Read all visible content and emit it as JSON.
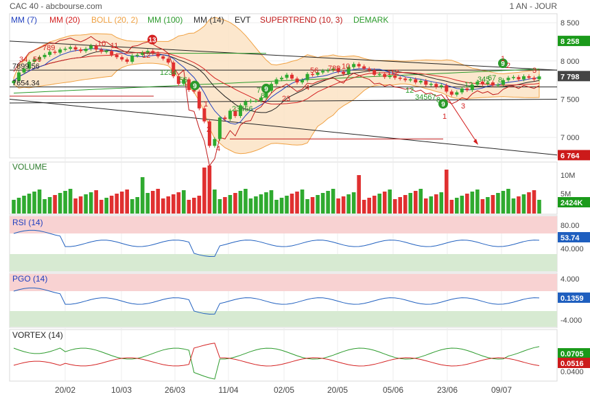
{
  "header": {
    "title": "CAC 40 - abcbourse.com",
    "period": "1 AN - JOUR"
  },
  "legend": [
    {
      "label": "MM (7)",
      "color": "#1f3fbf"
    },
    {
      "label": "MM (20)",
      "color": "#d42020"
    },
    {
      "label": "BOLL (20, 2)",
      "color": "#f0a040"
    },
    {
      "label": "MM (100)",
      "color": "#2a9a2a"
    },
    {
      "label": "MM (14)",
      "color": "#333333"
    },
    {
      "label": "EVT",
      "color": "#222222"
    },
    {
      "label": "SUPERTREND (10, 3)",
      "color": "#c01818"
    },
    {
      "label": "DEMARK",
      "color": "#2a9a2a"
    }
  ],
  "x_axis": {
    "labels": [
      "20/02",
      "10/03",
      "26/03",
      "11/04",
      "02/05",
      "20/05",
      "05/06",
      "23/06",
      "09/07"
    ]
  },
  "price_panel": {
    "y_ticks": [
      "8 500",
      "8 000",
      "7 500",
      "7 000"
    ],
    "badges": [
      {
        "text": "8 258",
        "color": "#1a9a1a"
      },
      {
        "text": "7 798",
        "color": "#444444"
      },
      {
        "text": "6 764",
        "color": "#cc1a1a"
      }
    ],
    "level_labels": [
      "7899.56",
      "7654.34"
    ],
    "demark_markers": [
      "13",
      "9",
      "9",
      "9",
      "9"
    ],
    "demark_counts": [
      "34",
      "56",
      "789",
      "10",
      "11",
      "12",
      "1234",
      "56",
      "1",
      "2",
      "4",
      "23456",
      "7",
      "8",
      "23",
      "4",
      "56",
      "789",
      "10",
      "112",
      "12",
      "34567",
      "8",
      "12",
      "345",
      "67",
      "8",
      "1",
      "2",
      "3",
      "1",
      "3"
    ]
  },
  "volume_panel": {
    "title": "VOLUME",
    "y_ticks": [
      "10M",
      "5M"
    ],
    "badge": {
      "text": "2424K",
      "color": "#1a9a1a"
    }
  },
  "rsi_panel": {
    "title": "RSI (14)",
    "y_ticks": [
      "80.00",
      "40.000"
    ],
    "badge": {
      "text": "53.74",
      "color": "#1f5fbf"
    }
  },
  "pgo_panel": {
    "title": "PGO (14)",
    "y_ticks": [
      "4.000",
      "-4.000"
    ],
    "badge": {
      "text": "0.1359",
      "color": "#1f5fbf"
    }
  },
  "vortex_panel": {
    "title": "VORTEX (14)",
    "y_ticks": [
      "0.0400"
    ],
    "badges": [
      {
        "text": "0.0705",
        "color": "#1a9a1a"
      },
      {
        "text": "0.0516",
        "color": "#cc1a1a"
      }
    ]
  },
  "chart_data": {
    "type": "candlestick",
    "x_labels": [
      "20/02",
      "10/03",
      "26/03",
      "11/04",
      "02/05",
      "20/05",
      "05/06",
      "23/06",
      "09/07"
    ],
    "price": {
      "ylim": [
        6750,
        8600
      ],
      "approx_closes": [
        7740,
        7850,
        7900,
        7990,
        8020,
        8050,
        8080,
        8120,
        8110,
        8150,
        8160,
        8180,
        8150,
        8130,
        8160,
        8200,
        8150,
        8120,
        8130,
        8080,
        8050,
        8020,
        7990,
        8070,
        8080,
        8110,
        8130,
        8100,
        8060,
        8030,
        7980,
        7800,
        7700,
        7760,
        7620,
        7600,
        7380,
        7210,
        6890,
        6980,
        7260,
        7240,
        7350,
        7280,
        7420,
        7470,
        7480,
        7480,
        7520,
        7610,
        7700,
        7760,
        7780,
        7820,
        7770,
        7720,
        7750,
        7830,
        7820,
        7850,
        7870,
        7880,
        7900,
        7860,
        7830,
        7920,
        7960,
        7930,
        7900,
        7880,
        7820,
        7830,
        7790,
        7810,
        7780,
        7770,
        7750,
        7760,
        7720,
        7740,
        7690,
        7700,
        7660,
        7680,
        7600,
        7560,
        7590,
        7640,
        7620,
        7690,
        7730,
        7700,
        7720,
        7680,
        7690,
        7750,
        7780,
        7790,
        7760,
        7800,
        7780,
        7760,
        7798
      ]
    },
    "volume": {
      "unit": "shares",
      "last": "2424K"
    },
    "rsi": {
      "last": 53.74,
      "overbought": 70,
      "oversold": 30
    },
    "pgo": {
      "last": 0.1359
    },
    "vortex": {
      "vi_plus": 0.0705,
      "vi_minus": 0.0516
    }
  }
}
